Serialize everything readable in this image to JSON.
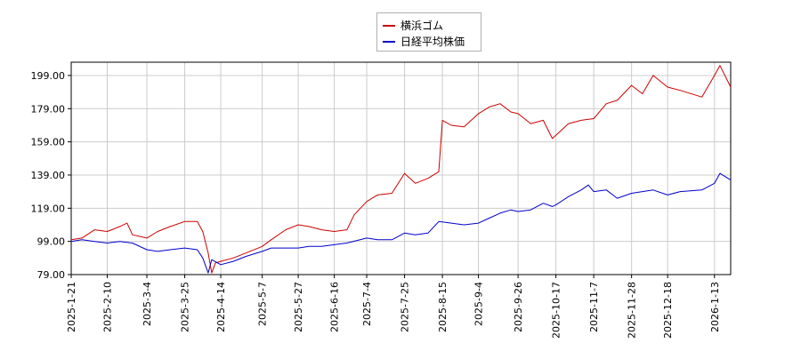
{
  "chart_data": {
    "type": "line",
    "title": "",
    "xlabel": "",
    "ylabel": "",
    "ylim": [
      79.0,
      207.0
    ],
    "y_ticks": [
      "79.00",
      "99.00",
      "119.00",
      "139.00",
      "159.00",
      "179.00",
      "199.00"
    ],
    "x_ticks": [
      "2025-1-21",
      "2025-2-10",
      "2025-3-4",
      "2025-3-25",
      "2025-4-14",
      "2025-5-7",
      "2025-5-27",
      "2025-6-16",
      "2025-7-4",
      "2025-7-25",
      "2025-8-15",
      "2025-9-4",
      "2025-9-26",
      "2025-10-17",
      "2025-11-7",
      "2025-11-28",
      "2025-12-18",
      "2026-1-13"
    ],
    "x_range": [
      "2025-1-21",
      "2026-1-22"
    ],
    "grid": true,
    "legend_position": "top-center",
    "series": [
      {
        "name": "横浜ゴム",
        "color": "#cc0000",
        "points": [
          [
            "2025-1-21",
            100
          ],
          [
            "2025-1-27",
            101
          ],
          [
            "2025-2-3",
            106
          ],
          [
            "2025-2-10",
            105
          ],
          [
            "2025-2-17",
            108
          ],
          [
            "2025-2-21",
            110
          ],
          [
            "2025-2-24",
            103
          ],
          [
            "2025-3-4",
            101
          ],
          [
            "2025-3-10",
            105
          ],
          [
            "2025-3-17",
            108
          ],
          [
            "2025-3-25",
            111
          ],
          [
            "2025-4-1",
            111
          ],
          [
            "2025-4-4",
            105
          ],
          [
            "2025-4-7",
            92
          ],
          [
            "2025-4-9",
            80
          ],
          [
            "2025-4-11",
            86
          ],
          [
            "2025-4-14",
            87
          ],
          [
            "2025-4-21",
            89
          ],
          [
            "2025-4-28",
            92
          ],
          [
            "2025-5-7",
            96
          ],
          [
            "2025-5-12",
            100
          ],
          [
            "2025-5-20",
            106
          ],
          [
            "2025-5-27",
            109
          ],
          [
            "2025-6-2",
            108
          ],
          [
            "2025-6-9",
            106
          ],
          [
            "2025-6-16",
            105
          ],
          [
            "2025-6-23",
            106
          ],
          [
            "2025-6-27",
            115
          ],
          [
            "2025-7-4",
            123
          ],
          [
            "2025-7-10",
            127
          ],
          [
            "2025-7-18",
            128
          ],
          [
            "2025-7-25",
            140
          ],
          [
            "2025-7-31",
            134
          ],
          [
            "2025-8-7",
            137
          ],
          [
            "2025-8-13",
            141
          ],
          [
            "2025-8-15",
            172
          ],
          [
            "2025-8-20",
            169
          ],
          [
            "2025-8-27",
            168
          ],
          [
            "2025-9-4",
            176
          ],
          [
            "2025-9-10",
            180
          ],
          [
            "2025-9-16",
            182
          ],
          [
            "2025-9-22",
            177
          ],
          [
            "2025-9-26",
            176
          ],
          [
            "2025-10-3",
            170
          ],
          [
            "2025-10-10",
            172
          ],
          [
            "2025-10-15",
            161
          ],
          [
            "2025-10-17",
            163
          ],
          [
            "2025-10-24",
            170
          ],
          [
            "2025-10-31",
            172
          ],
          [
            "2025-11-7",
            173
          ],
          [
            "2025-11-14",
            182
          ],
          [
            "2025-11-20",
            184
          ],
          [
            "2025-11-28",
            193
          ],
          [
            "2025-12-4",
            188
          ],
          [
            "2025-12-10",
            199
          ],
          [
            "2025-12-18",
            192
          ],
          [
            "2025-12-25",
            190
          ],
          [
            "2026-1-6",
            186
          ],
          [
            "2026-1-13",
            199
          ],
          [
            "2026-1-16",
            205
          ],
          [
            "2026-1-22",
            192
          ]
        ]
      },
      {
        "name": "日経平均株価",
        "color": "#0000cc",
        "points": [
          [
            "2025-1-21",
            99
          ],
          [
            "2025-1-27",
            100
          ],
          [
            "2025-2-3",
            99
          ],
          [
            "2025-2-10",
            98
          ],
          [
            "2025-2-17",
            99
          ],
          [
            "2025-2-24",
            98
          ],
          [
            "2025-3-4",
            94
          ],
          [
            "2025-3-10",
            93
          ],
          [
            "2025-3-17",
            94
          ],
          [
            "2025-3-25",
            95
          ],
          [
            "2025-4-1",
            94
          ],
          [
            "2025-4-4",
            89
          ],
          [
            "2025-4-7",
            80
          ],
          [
            "2025-4-9",
            88
          ],
          [
            "2025-4-14",
            85
          ],
          [
            "2025-4-21",
            87
          ],
          [
            "2025-4-28",
            90
          ],
          [
            "2025-5-7",
            93
          ],
          [
            "2025-5-12",
            95
          ],
          [
            "2025-5-20",
            95
          ],
          [
            "2025-5-27",
            95
          ],
          [
            "2025-6-2",
            96
          ],
          [
            "2025-6-9",
            96
          ],
          [
            "2025-6-16",
            97
          ],
          [
            "2025-6-23",
            98
          ],
          [
            "2025-7-4",
            101
          ],
          [
            "2025-7-10",
            100
          ],
          [
            "2025-7-18",
            100
          ],
          [
            "2025-7-25",
            104
          ],
          [
            "2025-7-31",
            103
          ],
          [
            "2025-8-7",
            104
          ],
          [
            "2025-8-13",
            111
          ],
          [
            "2025-8-20",
            110
          ],
          [
            "2025-8-27",
            109
          ],
          [
            "2025-9-4",
            110
          ],
          [
            "2025-9-10",
            113
          ],
          [
            "2025-9-16",
            116
          ],
          [
            "2025-9-22",
            118
          ],
          [
            "2025-9-26",
            117
          ],
          [
            "2025-10-3",
            118
          ],
          [
            "2025-10-10",
            122
          ],
          [
            "2025-10-15",
            120
          ],
          [
            "2025-10-17",
            121
          ],
          [
            "2025-10-24",
            126
          ],
          [
            "2025-10-31",
            130
          ],
          [
            "2025-11-4",
            133
          ],
          [
            "2025-11-7",
            129
          ],
          [
            "2025-11-14",
            130
          ],
          [
            "2025-11-20",
            125
          ],
          [
            "2025-11-28",
            128
          ],
          [
            "2025-12-4",
            129
          ],
          [
            "2025-12-10",
            130
          ],
          [
            "2025-12-18",
            127
          ],
          [
            "2025-12-25",
            129
          ],
          [
            "2026-1-6",
            130
          ],
          [
            "2026-1-13",
            134
          ],
          [
            "2026-1-16",
            140
          ],
          [
            "2026-1-22",
            136
          ]
        ]
      }
    ]
  }
}
